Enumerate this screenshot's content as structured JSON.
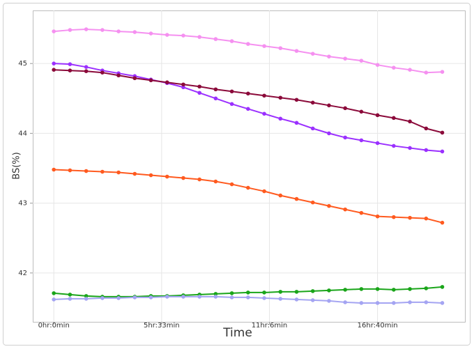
{
  "chart_data": {
    "type": "line",
    "x_label": "Time",
    "y_label": "BS(%)",
    "x": [
      0,
      50,
      100,
      150,
      200,
      250,
      300,
      350,
      400,
      450,
      500,
      550,
      600,
      650,
      700,
      750,
      800,
      850,
      900,
      950,
      1000,
      1050,
      1100,
      1150,
      1200
    ],
    "xlim": [
      -65,
      1270
    ],
    "xticks": [
      {
        "value": 0,
        "label": "0hr:0min"
      },
      {
        "value": 333,
        "label": "5hr:33min"
      },
      {
        "value": 666,
        "label": "11hr:6min"
      },
      {
        "value": 1000,
        "label": "16hr:40min"
      }
    ],
    "ylim": [
      41.3,
      45.76
    ],
    "yticks": [
      42,
      43,
      44,
      45
    ],
    "grid": true,
    "series": [
      {
        "color": "#f590f0",
        "values": [
          45.46,
          45.48,
          45.49,
          45.48,
          45.46,
          45.45,
          45.43,
          45.41,
          45.4,
          45.38,
          45.35,
          45.32,
          45.28,
          45.25,
          45.22,
          45.18,
          45.14,
          45.1,
          45.07,
          45.04,
          44.98,
          44.94,
          44.91,
          44.87,
          44.88
        ]
      },
      {
        "color": "#9b30ff",
        "values": [
          45.0,
          44.99,
          44.95,
          44.9,
          44.86,
          44.82,
          44.77,
          44.72,
          44.66,
          44.58,
          44.5,
          44.42,
          44.35,
          44.28,
          44.21,
          44.15,
          44.07,
          44.0,
          43.94,
          43.9,
          43.86,
          43.82,
          43.79,
          43.76,
          43.74
        ]
      },
      {
        "color": "#8b0a3a",
        "values": [
          44.91,
          44.9,
          44.89,
          44.87,
          44.83,
          44.79,
          44.76,
          44.73,
          44.7,
          44.67,
          44.63,
          44.6,
          44.57,
          44.54,
          44.51,
          44.48,
          44.44,
          44.4,
          44.36,
          44.31,
          44.26,
          44.22,
          44.17,
          44.07,
          44.01
        ]
      },
      {
        "color": "#ff5a1f",
        "values": [
          43.48,
          43.47,
          43.46,
          43.45,
          43.44,
          43.42,
          43.4,
          43.38,
          43.36,
          43.34,
          43.31,
          43.27,
          43.22,
          43.17,
          43.11,
          43.06,
          43.01,
          42.96,
          42.91,
          42.86,
          42.81,
          42.8,
          42.79,
          42.78,
          42.72
        ]
      },
      {
        "color": "#1aa51a",
        "values": [
          41.71,
          41.69,
          41.67,
          41.66,
          41.66,
          41.66,
          41.67,
          41.67,
          41.68,
          41.69,
          41.7,
          41.71,
          41.72,
          41.72,
          41.73,
          41.73,
          41.74,
          41.75,
          41.76,
          41.77,
          41.77,
          41.76,
          41.77,
          41.78,
          41.8
        ]
      },
      {
        "color": "#a4a4f2",
        "values": [
          41.62,
          41.63,
          41.63,
          41.64,
          41.64,
          41.65,
          41.65,
          41.66,
          41.66,
          41.66,
          41.66,
          41.65,
          41.65,
          41.64,
          41.63,
          41.62,
          41.61,
          41.6,
          41.58,
          41.57,
          41.57,
          41.57,
          41.58,
          41.58,
          41.57
        ]
      }
    ]
  }
}
